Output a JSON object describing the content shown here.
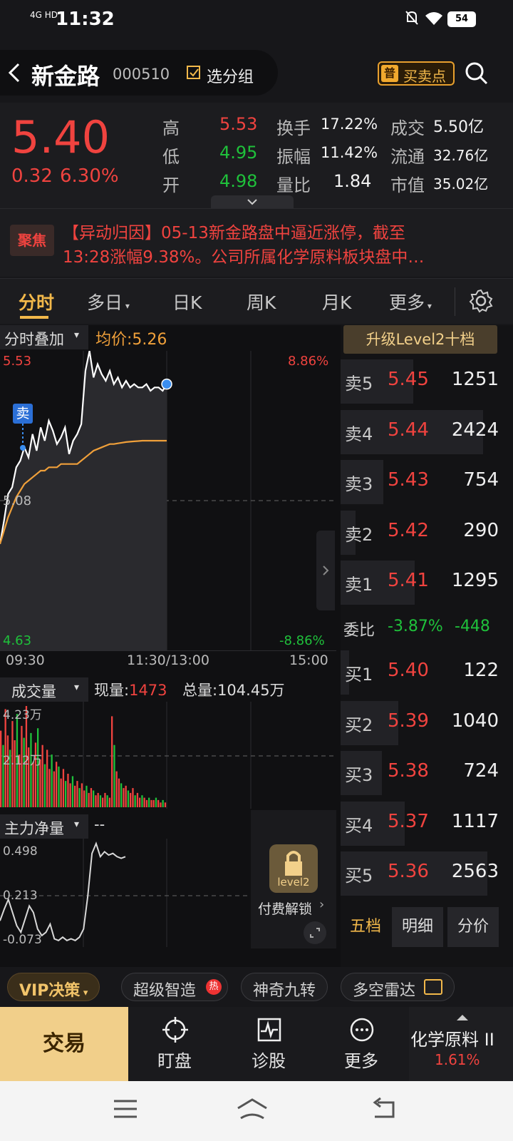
{
  "status_bar": {
    "network": "4G HD",
    "time": "11:32",
    "battery": "54"
  },
  "header": {
    "back_label": "<",
    "stock_name": "新金路",
    "stock_code": "000510",
    "group_button": "选分组",
    "badge": "普",
    "trade_point": "买卖点"
  },
  "quote": {
    "price": "5.40",
    "change": "0.32",
    "change_pct": "6.30%",
    "high_label": "高",
    "high": "5.53",
    "low_label": "低",
    "low": "4.95",
    "open_label": "开",
    "open": "4.98",
    "turnover_label": "换手",
    "turnover": "17.22%",
    "amplitude_label": "振幅",
    "amplitude": "11.42%",
    "vol_ratio_label": "量比",
    "vol_ratio": "1.84",
    "amount_label": "成交",
    "amount": "5.50亿",
    "float_label": "流通",
    "float": "32.76亿",
    "mktcap_label": "市值",
    "mktcap": "35.02亿"
  },
  "news": {
    "badge": "聚焦",
    "line1": "【异动归因】05-13新金路盘中逼近涨停，截至",
    "line2": "13:28涨幅9.38%。公司所属化学原料板块盘中…"
  },
  "tabs": [
    {
      "label": "分时"
    },
    {
      "label": "多日"
    },
    {
      "label": "日K"
    },
    {
      "label": "周K"
    },
    {
      "label": "月K"
    },
    {
      "label": "更多"
    }
  ],
  "intraday": {
    "overlay_label": "分时叠加",
    "avg_label": "均价:5.26",
    "y_top": "5.53",
    "y_mid": "5.08",
    "y_bottom": "4.63",
    "pct_top": "8.86%",
    "pct_bottom": "-8.86%",
    "sell_marker": "卖",
    "time_start": "09:30",
    "time_mid": "11:30/13:00",
    "time_end": "15:00",
    "price_series": [
      4.95,
      5.02,
      5.1,
      5.12,
      5.18,
      5.2,
      5.24,
      5.21,
      5.28,
      5.23,
      5.3,
      5.26,
      5.32,
      5.29,
      5.25,
      5.27,
      5.3,
      5.22,
      5.26,
      5.28,
      5.31,
      5.47,
      5.53,
      5.45,
      5.49,
      5.46,
      5.44,
      5.47,
      5.43,
      5.45,
      5.42,
      5.44,
      5.42,
      5.43,
      5.42,
      5.42,
      5.43,
      5.41,
      5.42,
      5.42,
      5.41,
      5.43
    ],
    "avg_series": [
      4.95,
      4.99,
      5.03,
      5.06,
      5.09,
      5.11,
      5.13,
      5.14,
      5.15,
      5.16,
      5.17,
      5.17,
      5.18,
      5.18,
      5.18,
      5.19,
      5.19,
      5.19,
      5.19,
      5.19,
      5.2,
      5.21,
      5.22,
      5.23,
      5.235,
      5.24,
      5.245,
      5.25,
      5.25,
      5.252,
      5.254,
      5.256,
      5.257,
      5.258,
      5.259,
      5.26,
      5.26,
      5.26,
      5.26,
      5.26,
      5.26,
      5.26
    ]
  },
  "volume": {
    "label": "成交量",
    "now_label": "现量:",
    "now_value": "1473",
    "total_label": "总量:104.45万",
    "y_top": "4.23万",
    "y_mid": "2.12万",
    "bars": [
      3.2,
      2.6,
      4.1,
      3.0,
      2.4,
      3.6,
      2.8,
      3.9,
      2.2,
      3.4,
      2.9,
      4.23,
      2.5,
      3.1,
      1.9,
      2.7,
      3.3,
      2.0,
      2.6,
      1.8,
      2.4,
      1.6,
      2.2,
      1.5,
      1.9,
      1.7,
      1.2,
      1.6,
      1.1,
      1.4,
      1.0,
      1.3,
      0.9,
      1.1,
      0.8,
      1.0,
      0.7,
      0.9,
      0.6,
      0.8,
      0.7,
      0.5,
      0.6,
      0.5,
      0.4,
      0.6,
      0.5,
      0.4,
      3.8,
      2.6,
      1.5,
      1.2,
      1.0,
      0.8,
      0.9,
      0.7,
      0.6,
      0.8,
      0.5,
      0.6,
      0.4,
      0.5,
      0.4,
      0.3,
      0.4,
      0.3,
      0.3,
      0.4,
      0.3,
      0.2,
      0.3,
      0.2
    ]
  },
  "main_force": {
    "label": "主力净量",
    "value": "--",
    "y_top": "0.498",
    "y_mid": "0.213",
    "y_bottom": "-0.073",
    "series": [
      0.05,
      0.12,
      0.18,
      0.1,
      0.02,
      -0.02,
      0.06,
      0.14,
      0.1,
      0.0,
      -0.04,
      -0.02,
      0.03,
      -0.06,
      -0.07,
      -0.05,
      -0.07,
      -0.06,
      -0.07,
      -0.05,
      0.0,
      0.2,
      0.46,
      0.52,
      0.44,
      0.47,
      0.45,
      0.46,
      0.44,
      0.43,
      0.44
    ],
    "lock_label": "level2",
    "unlock_label": "付费解锁"
  },
  "order_book": {
    "upgrade_label": "升级Level2十档",
    "asks": [
      {
        "label": "卖5",
        "price": "5.45",
        "volume": "1251",
        "fill": 0.44
      },
      {
        "label": "卖4",
        "price": "5.44",
        "volume": "2424",
        "fill": 0.86
      },
      {
        "label": "卖3",
        "price": "5.43",
        "volume": "754",
        "fill": 0.26
      },
      {
        "label": "卖2",
        "price": "5.42",
        "volume": "290",
        "fill": 0.09
      },
      {
        "label": "卖1",
        "price": "5.41",
        "volume": "1295",
        "fill": 0.45
      }
    ],
    "ratio_label": "委比",
    "ratio_pct": "-3.87%",
    "ratio_diff": "-448",
    "bids": [
      {
        "label": "买1",
        "price": "5.40",
        "volume": "122",
        "fill": 0.05
      },
      {
        "label": "买2",
        "price": "5.39",
        "volume": "1040",
        "fill": 0.35
      },
      {
        "label": "买3",
        "price": "5.38",
        "volume": "724",
        "fill": 0.25
      },
      {
        "label": "买4",
        "price": "5.37",
        "volume": "1117",
        "fill": 0.39
      },
      {
        "label": "买5",
        "price": "5.36",
        "volume": "2563",
        "fill": 0.89
      }
    ],
    "tabs": [
      "五档",
      "明细",
      "分价"
    ]
  },
  "toolbar": {
    "vip": "VIP决策",
    "chip1": "超级智造",
    "hot": "热",
    "chip2": "神奇九转",
    "chip3": "多空雷达"
  },
  "bottom_nav": {
    "trade": "交易",
    "watch": "盯盘",
    "diagnose": "诊股",
    "more": "更多",
    "sector": "化学原料 II",
    "sector_pct": "1.61%"
  },
  "colors": {
    "up": "#f0433f",
    "down": "#1fc13b",
    "avg_line": "#f0a03a",
    "accent": "#f2b84a"
  }
}
